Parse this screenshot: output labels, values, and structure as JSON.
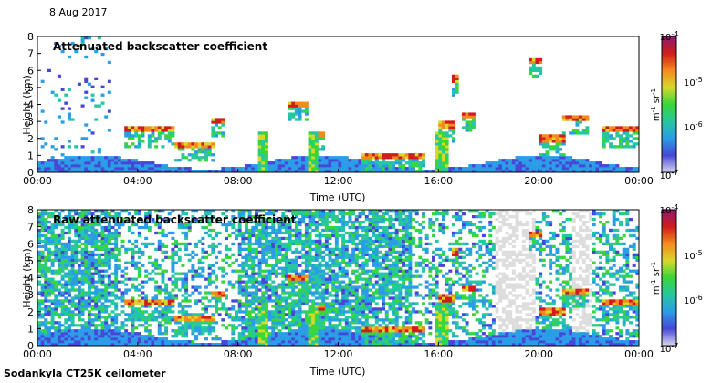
{
  "date_label": "8 Aug 2017",
  "footer": "Sodankyla CT25K ceilometer",
  "colors": {
    "colormap": [
      "#d8d8ee",
      "#4646d8",
      "#2a9de6",
      "#25c7a0",
      "#38d638",
      "#d8d82a",
      "#f58a1c",
      "#d01c1c",
      "#8c1a6e"
    ],
    "missing": "#dddddd"
  },
  "chart_data": [
    {
      "type": "heatmap",
      "title": "Attenuated backscatter coefficient",
      "xlabel": "Time (UTC)",
      "ylabel": "Height (km)",
      "x_ticks": [
        "00:00",
        "04:00",
        "08:00",
        "12:00",
        "16:00",
        "20:00",
        "00:00"
      ],
      "xlim_hours": [
        0,
        24
      ],
      "y_ticks": [
        0,
        1,
        2,
        3,
        4,
        5,
        6,
        7,
        8
      ],
      "ylim_km": [
        0,
        8
      ],
      "colorbar": {
        "scale": "log",
        "min_label": "10",
        "min_exp": "-7",
        "mid1_label": "10",
        "mid1_exp": "-6",
        "mid2_label": "10",
        "mid2_exp": "-5",
        "max_label": "10",
        "max_exp": "-4",
        "unit_m": "m",
        "unit_m_exp": "-1",
        "unit_sr": "sr",
        "unit_sr_exp": "-1"
      },
      "features": {
        "cloud_layers_km": [
          {
            "start_h": 3.5,
            "end_h": 5.5,
            "height_km": 2.5
          },
          {
            "start_h": 5.5,
            "end_h": 7.0,
            "height_km": 1.6
          },
          {
            "start_h": 7.0,
            "end_h": 7.5,
            "height_km": 3.0
          },
          {
            "start_h": 10.0,
            "end_h": 10.8,
            "height_km": 4.0
          },
          {
            "start_h": 10.8,
            "end_h": 11.5,
            "height_km": 2.2
          },
          {
            "start_h": 13.0,
            "end_h": 15.5,
            "height_km": 1.0
          },
          {
            "start_h": 16.0,
            "end_h": 16.6,
            "height_km": 2.8
          },
          {
            "start_h": 16.6,
            "end_h": 16.8,
            "height_km": 5.5
          },
          {
            "start_h": 17.0,
            "end_h": 17.4,
            "height_km": 3.4
          },
          {
            "start_h": 19.6,
            "end_h": 20.1,
            "height_km": 6.6
          },
          {
            "start_h": 20.0,
            "end_h": 21.0,
            "height_km": 2.0
          },
          {
            "start_h": 21.0,
            "end_h": 22.0,
            "height_km": 3.2
          },
          {
            "start_h": 22.6,
            "end_h": 24.0,
            "height_km": 2.5
          }
        ],
        "precip_columns_h": [
          9.0,
          11.0,
          16.1
        ]
      }
    },
    {
      "type": "heatmap",
      "title": "Raw attenuated backscatter coefficient",
      "xlabel": "Time (UTC)",
      "ylabel": "Height (km)",
      "x_ticks": [
        "00:00",
        "04:00",
        "08:00",
        "12:00",
        "16:00",
        "20:00",
        "00:00"
      ],
      "xlim_hours": [
        0,
        24
      ],
      "y_ticks": [
        0,
        1,
        2,
        3,
        4,
        5,
        6,
        7,
        8
      ],
      "ylim_km": [
        0,
        8
      ],
      "colorbar": {
        "scale": "log",
        "min_label": "10",
        "min_exp": "-7",
        "mid1_label": "10",
        "mid1_exp": "-6",
        "mid2_label": "10",
        "mid2_exp": "-5",
        "max_label": "10",
        "max_exp": "-4",
        "unit_m": "m",
        "unit_m_exp": "-1",
        "unit_sr": "sr",
        "unit_sr_exp": "-1"
      }
    }
  ]
}
